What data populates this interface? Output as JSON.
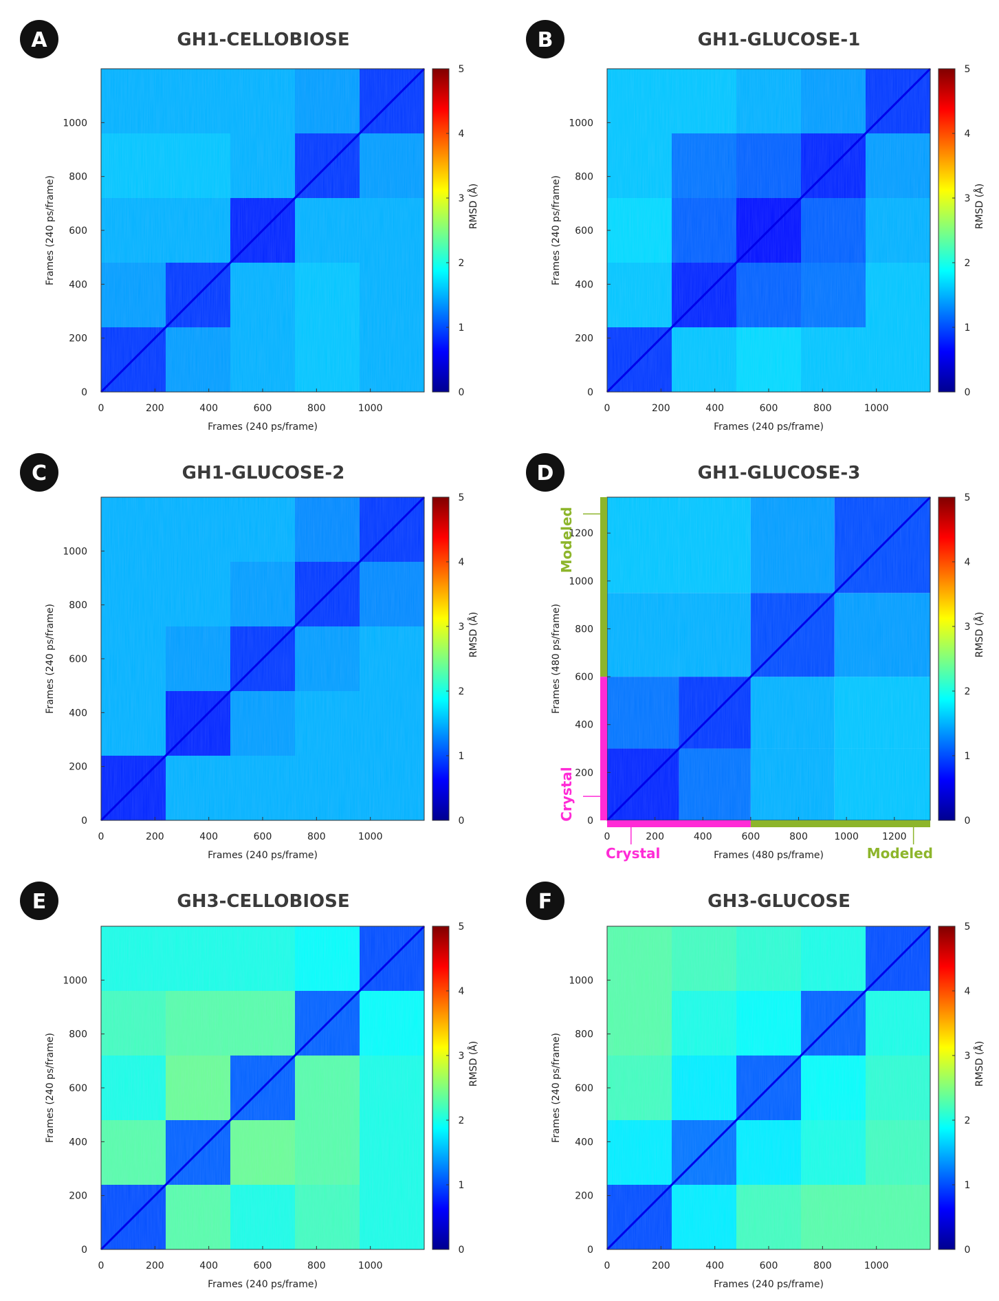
{
  "figure": {
    "colorbar_label": "RMSD (Å)"
  },
  "chart_data": [
    {
      "type": "heatmap",
      "letter": "A",
      "title": "GH1-CELLOBIOSE",
      "xlabel": "Frames (240 ps/frame)",
      "ylabel": "Frames (240 ps/frame)",
      "xlim": [
        0,
        1200
      ],
      "ylim": [
        0,
        1200
      ],
      "xticks": [
        "0",
        "200",
        "400",
        "600",
        "800",
        "1000"
      ],
      "yticks": [
        "0",
        "200",
        "400",
        "600",
        "800",
        "1000"
      ],
      "colorbar": {
        "min": 0,
        "max": 5,
        "ticks": [
          "0",
          "1",
          "2",
          "3",
          "4",
          "5"
        ],
        "label": "RMSD (Å)"
      },
      "blocks": [
        0,
        240,
        480,
        720,
        960,
        1200
      ],
      "matrix": [
        [
          0.9,
          1.4,
          1.5,
          1.6,
          1.5
        ],
        [
          1.4,
          0.9,
          1.5,
          1.6,
          1.5
        ],
        [
          1.5,
          1.5,
          0.8,
          1.5,
          1.5
        ],
        [
          1.6,
          1.6,
          1.5,
          0.9,
          1.4
        ],
        [
          1.5,
          1.5,
          1.5,
          1.4,
          0.9
        ]
      ]
    },
    {
      "type": "heatmap",
      "letter": "B",
      "title": "GH1-GLUCOSE-1",
      "xlabel": "Frames (240 ps/frame)",
      "ylabel": "Frames (240 ps/frame)",
      "xlim": [
        0,
        1200
      ],
      "ylim": [
        0,
        1200
      ],
      "xticks": [
        "0",
        "200",
        "400",
        "600",
        "800",
        "1000"
      ],
      "yticks": [
        "0",
        "200",
        "400",
        "600",
        "800",
        "1000"
      ],
      "colorbar": {
        "min": 0,
        "max": 5,
        "ticks": [
          "0",
          "1",
          "2",
          "3",
          "4",
          "5"
        ],
        "label": "RMSD (Å)"
      },
      "blocks": [
        0,
        240,
        480,
        720,
        960,
        1200
      ],
      "matrix": [
        [
          0.9,
          1.6,
          1.7,
          1.6,
          1.6
        ],
        [
          1.6,
          0.8,
          1.1,
          1.2,
          1.6
        ],
        [
          1.7,
          1.1,
          0.7,
          1.1,
          1.5
        ],
        [
          1.6,
          1.2,
          1.1,
          0.8,
          1.4
        ],
        [
          1.6,
          1.6,
          1.5,
          1.4,
          0.9
        ]
      ]
    },
    {
      "type": "heatmap",
      "letter": "C",
      "title": "GH1-GLUCOSE-2",
      "xlabel": "Frames (240 ps/frame)",
      "ylabel": "Frames (240 ps/frame)",
      "xlim": [
        0,
        1200
      ],
      "ylim": [
        0,
        1200
      ],
      "xticks": [
        "0",
        "200",
        "400",
        "600",
        "800",
        "1000"
      ],
      "yticks": [
        "0",
        "200",
        "400",
        "600",
        "800",
        "1000"
      ],
      "colorbar": {
        "min": 0,
        "max": 5,
        "ticks": [
          "0",
          "1",
          "2",
          "3",
          "4",
          "5"
        ],
        "label": "RMSD (Å)"
      },
      "blocks": [
        0,
        240,
        480,
        720,
        960,
        1200
      ],
      "matrix": [
        [
          0.8,
          1.5,
          1.5,
          1.5,
          1.5
        ],
        [
          1.5,
          0.8,
          1.4,
          1.5,
          1.5
        ],
        [
          1.5,
          1.4,
          0.9,
          1.4,
          1.5
        ],
        [
          1.5,
          1.5,
          1.4,
          0.9,
          1.3
        ],
        [
          1.5,
          1.5,
          1.5,
          1.3,
          0.9
        ]
      ]
    },
    {
      "type": "heatmap",
      "letter": "D",
      "title": "GH1-GLUCOSE-3",
      "xlabel": "Frames (480 ps/frame)",
      "ylabel": "Frames (480 ps/frame)",
      "xlim": [
        0,
        1350
      ],
      "ylim": [
        0,
        1350
      ],
      "xticks": [
        "0",
        "200",
        "400",
        "600",
        "800",
        "1000",
        "1200"
      ],
      "yticks": [
        "0",
        "200",
        "400",
        "600",
        "800",
        "1000",
        "1200"
      ],
      "colorbar": {
        "min": 0,
        "max": 5,
        "ticks": [
          "0",
          "1",
          "2",
          "3",
          "4",
          "5"
        ],
        "label": "RMSD (Å)"
      },
      "blocks": [
        0,
        300,
        600,
        950,
        1350
      ],
      "matrix": [
        [
          0.8,
          1.2,
          1.5,
          1.6
        ],
        [
          1.2,
          0.9,
          1.5,
          1.6
        ],
        [
          1.5,
          1.5,
          1.0,
          1.4
        ],
        [
          1.6,
          1.6,
          1.4,
          1.0
        ]
      ],
      "segments": [
        {
          "label": "Crystal",
          "from": 0,
          "to": 600
        },
        {
          "label": "Modeled",
          "from": 600,
          "to": 1350
        }
      ]
    },
    {
      "type": "heatmap",
      "letter": "E",
      "title": "GH3-CELLOBIOSE",
      "xlabel": "Frames (240 ps/frame)",
      "ylabel": "Frames (240 ps/frame)",
      "xlim": [
        0,
        1200
      ],
      "ylim": [
        0,
        1200
      ],
      "xticks": [
        "0",
        "200",
        "400",
        "600",
        "800",
        "1000"
      ],
      "yticks": [
        "0",
        "200",
        "400",
        "600",
        "800",
        "1000"
      ],
      "colorbar": {
        "min": 0,
        "max": 5,
        "ticks": [
          "0",
          "1",
          "2",
          "3",
          "4",
          "5"
        ],
        "label": "RMSD (Å)"
      },
      "blocks": [
        0,
        240,
        480,
        720,
        960,
        1200
      ],
      "matrix": [
        [
          1.0,
          2.3,
          2.0,
          2.2,
          2.0
        ],
        [
          2.3,
          1.1,
          2.4,
          2.3,
          2.0
        ],
        [
          2.0,
          2.4,
          1.1,
          2.3,
          2.0
        ],
        [
          2.2,
          2.3,
          2.3,
          1.1,
          1.9
        ],
        [
          2.0,
          2.0,
          2.0,
          1.9,
          1.0
        ]
      ]
    },
    {
      "type": "heatmap",
      "letter": "F",
      "title": "GH3-GLUCOSE",
      "xlabel": "Frames (240 ps/frame)",
      "ylabel": "Frames (240 ps/frame)",
      "xlim": [
        0,
        1200
      ],
      "ylim": [
        0,
        1200
      ],
      "xticks": [
        "0",
        "200",
        "400",
        "600",
        "800",
        "1000"
      ],
      "yticks": [
        "0",
        "200",
        "400",
        "600",
        "800",
        "1000"
      ],
      "colorbar": {
        "min": 0,
        "max": 5,
        "ticks": [
          "0",
          "1",
          "2",
          "3",
          "4",
          "5"
        ],
        "label": "RMSD (Å)"
      },
      "blocks": [
        0,
        240,
        480,
        720,
        960,
        1200
      ],
      "matrix": [
        [
          1.0,
          1.8,
          2.2,
          2.3,
          2.3
        ],
        [
          1.8,
          1.2,
          1.8,
          2.0,
          2.2
        ],
        [
          2.2,
          1.8,
          1.1,
          1.9,
          2.1
        ],
        [
          2.3,
          2.0,
          1.9,
          1.1,
          2.0
        ],
        [
          2.3,
          2.2,
          2.1,
          2.0,
          1.0
        ]
      ]
    }
  ]
}
